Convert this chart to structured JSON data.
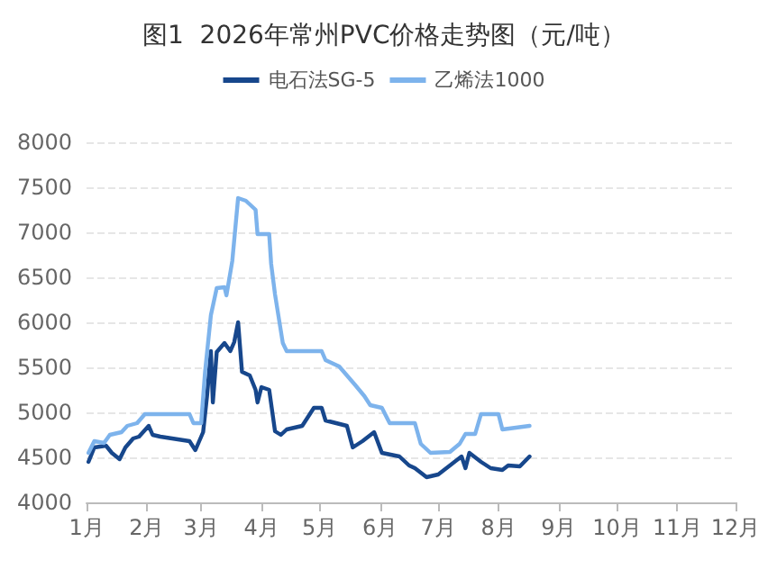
{
  "chart_data": {
    "type": "line",
    "title": "图1  2026年常州PVC价格走势图（元/吨）",
    "xlim": [
      "2026-01-01",
      "2026-12-01"
    ],
    "xticks": [
      {
        "value": "2026-01-01",
        "label": "1月"
      },
      {
        "value": "2026-02-01",
        "label": "2月"
      },
      {
        "value": "2026-03-01",
        "label": "3月"
      },
      {
        "value": "2026-04-01",
        "label": "4月"
      },
      {
        "value": "2026-05-01",
        "label": "5月"
      },
      {
        "value": "2026-06-01",
        "label": "6月"
      },
      {
        "value": "2026-07-01",
        "label": "7月"
      },
      {
        "value": "2026-08-01",
        "label": "8月"
      },
      {
        "value": "2026-09-01",
        "label": "9月"
      },
      {
        "value": "2026-10-01",
        "label": "10月"
      },
      {
        "value": "2026-11-01",
        "label": "11月"
      },
      {
        "value": "2026-12-01",
        "label": "12月"
      }
    ],
    "ylim": [
      4000,
      8000
    ],
    "yticks": [
      4000,
      4500,
      5000,
      5500,
      6000,
      6500,
      7000,
      7500,
      8000
    ],
    "grid": "y",
    "legend": "top",
    "marker": "none",
    "line_style": "solid",
    "series": [
      {
        "name": "电石法SG-5",
        "color": "#17478c",
        "x": [
          "2026-01-02",
          "2026-01-05",
          "2026-01-11",
          "2026-01-14",
          "2026-01-18",
          "2026-01-21",
          "2026-01-25",
          "2026-01-28",
          "2026-02-02",
          "2026-02-04",
          "2026-02-08",
          "2026-02-23",
          "2026-02-26",
          "2026-03-02",
          "2026-03-04",
          "2026-03-06",
          "2026-03-07",
          "2026-03-09",
          "2026-03-13",
          "2026-03-16",
          "2026-03-18",
          "2026-03-20",
          "2026-03-22",
          "2026-03-26",
          "2026-03-29",
          "2026-03-30",
          "2026-04-01",
          "2026-04-05",
          "2026-04-08",
          "2026-04-11",
          "2026-04-14",
          "2026-04-22",
          "2026-04-25",
          "2026-04-28",
          "2026-05-02",
          "2026-05-04",
          "2026-05-15",
          "2026-05-18",
          "2026-05-23",
          "2026-05-29",
          "2026-06-02",
          "2026-06-11",
          "2026-06-16",
          "2026-06-19",
          "2026-06-25",
          "2026-07-01",
          "2026-07-07",
          "2026-07-13",
          "2026-07-15",
          "2026-07-17",
          "2026-07-23",
          "2026-07-28",
          "2026-08-03",
          "2026-08-06",
          "2026-08-12",
          "2026-08-17"
        ],
        "values": [
          4450,
          4610,
          4630,
          4550,
          4480,
          4610,
          4710,
          4730,
          4850,
          4750,
          4730,
          4680,
          4580,
          4780,
          5180,
          5680,
          5110,
          5670,
          5770,
          5680,
          5780,
          6000,
          5450,
          5410,
          5250,
          5110,
          5280,
          5250,
          4790,
          4750,
          4810,
          4850,
          4950,
          5050,
          5050,
          4910,
          4850,
          4610,
          4680,
          4780,
          4550,
          4510,
          4410,
          4380,
          4280,
          4310,
          4410,
          4510,
          4380,
          4550,
          4450,
          4380,
          4360,
          4410,
          4400,
          4510
        ]
      },
      {
        "name": "乙烯法1000",
        "color": "#7db3ec",
        "x": [
          "2026-01-02",
          "2026-01-05",
          "2026-01-10",
          "2026-01-13",
          "2026-01-19",
          "2026-01-22",
          "2026-01-27",
          "2026-01-31",
          "2026-02-23",
          "2026-02-25",
          "2026-03-01",
          "2026-03-03",
          "2026-03-06",
          "2026-03-09",
          "2026-03-13",
          "2026-03-14",
          "2026-03-17",
          "2026-03-20",
          "2026-03-24",
          "2026-03-29",
          "2026-03-30",
          "2026-04-05",
          "2026-04-06",
          "2026-04-08",
          "2026-04-12",
          "2026-04-14",
          "2026-05-02",
          "2026-05-04",
          "2026-05-11",
          "2026-05-15",
          "2026-05-19",
          "2026-05-24",
          "2026-05-27",
          "2026-06-02",
          "2026-06-06",
          "2026-06-19",
          "2026-06-22",
          "2026-06-27",
          "2026-07-07",
          "2026-07-12",
          "2026-07-15",
          "2026-07-20",
          "2026-07-23",
          "2026-08-01",
          "2026-08-03",
          "2026-08-17"
        ],
        "values": [
          4550,
          4680,
          4660,
          4750,
          4780,
          4850,
          4880,
          4980,
          4980,
          4880,
          4880,
          5450,
          6080,
          6380,
          6390,
          6300,
          6680,
          7380,
          7350,
          7250,
          6980,
          6980,
          6650,
          6310,
          5770,
          5680,
          5680,
          5580,
          5510,
          5410,
          5310,
          5180,
          5080,
          5050,
          4880,
          4880,
          4650,
          4550,
          4560,
          4650,
          4760,
          4760,
          4980,
          4980,
          4810,
          4850
        ]
      }
    ]
  }
}
